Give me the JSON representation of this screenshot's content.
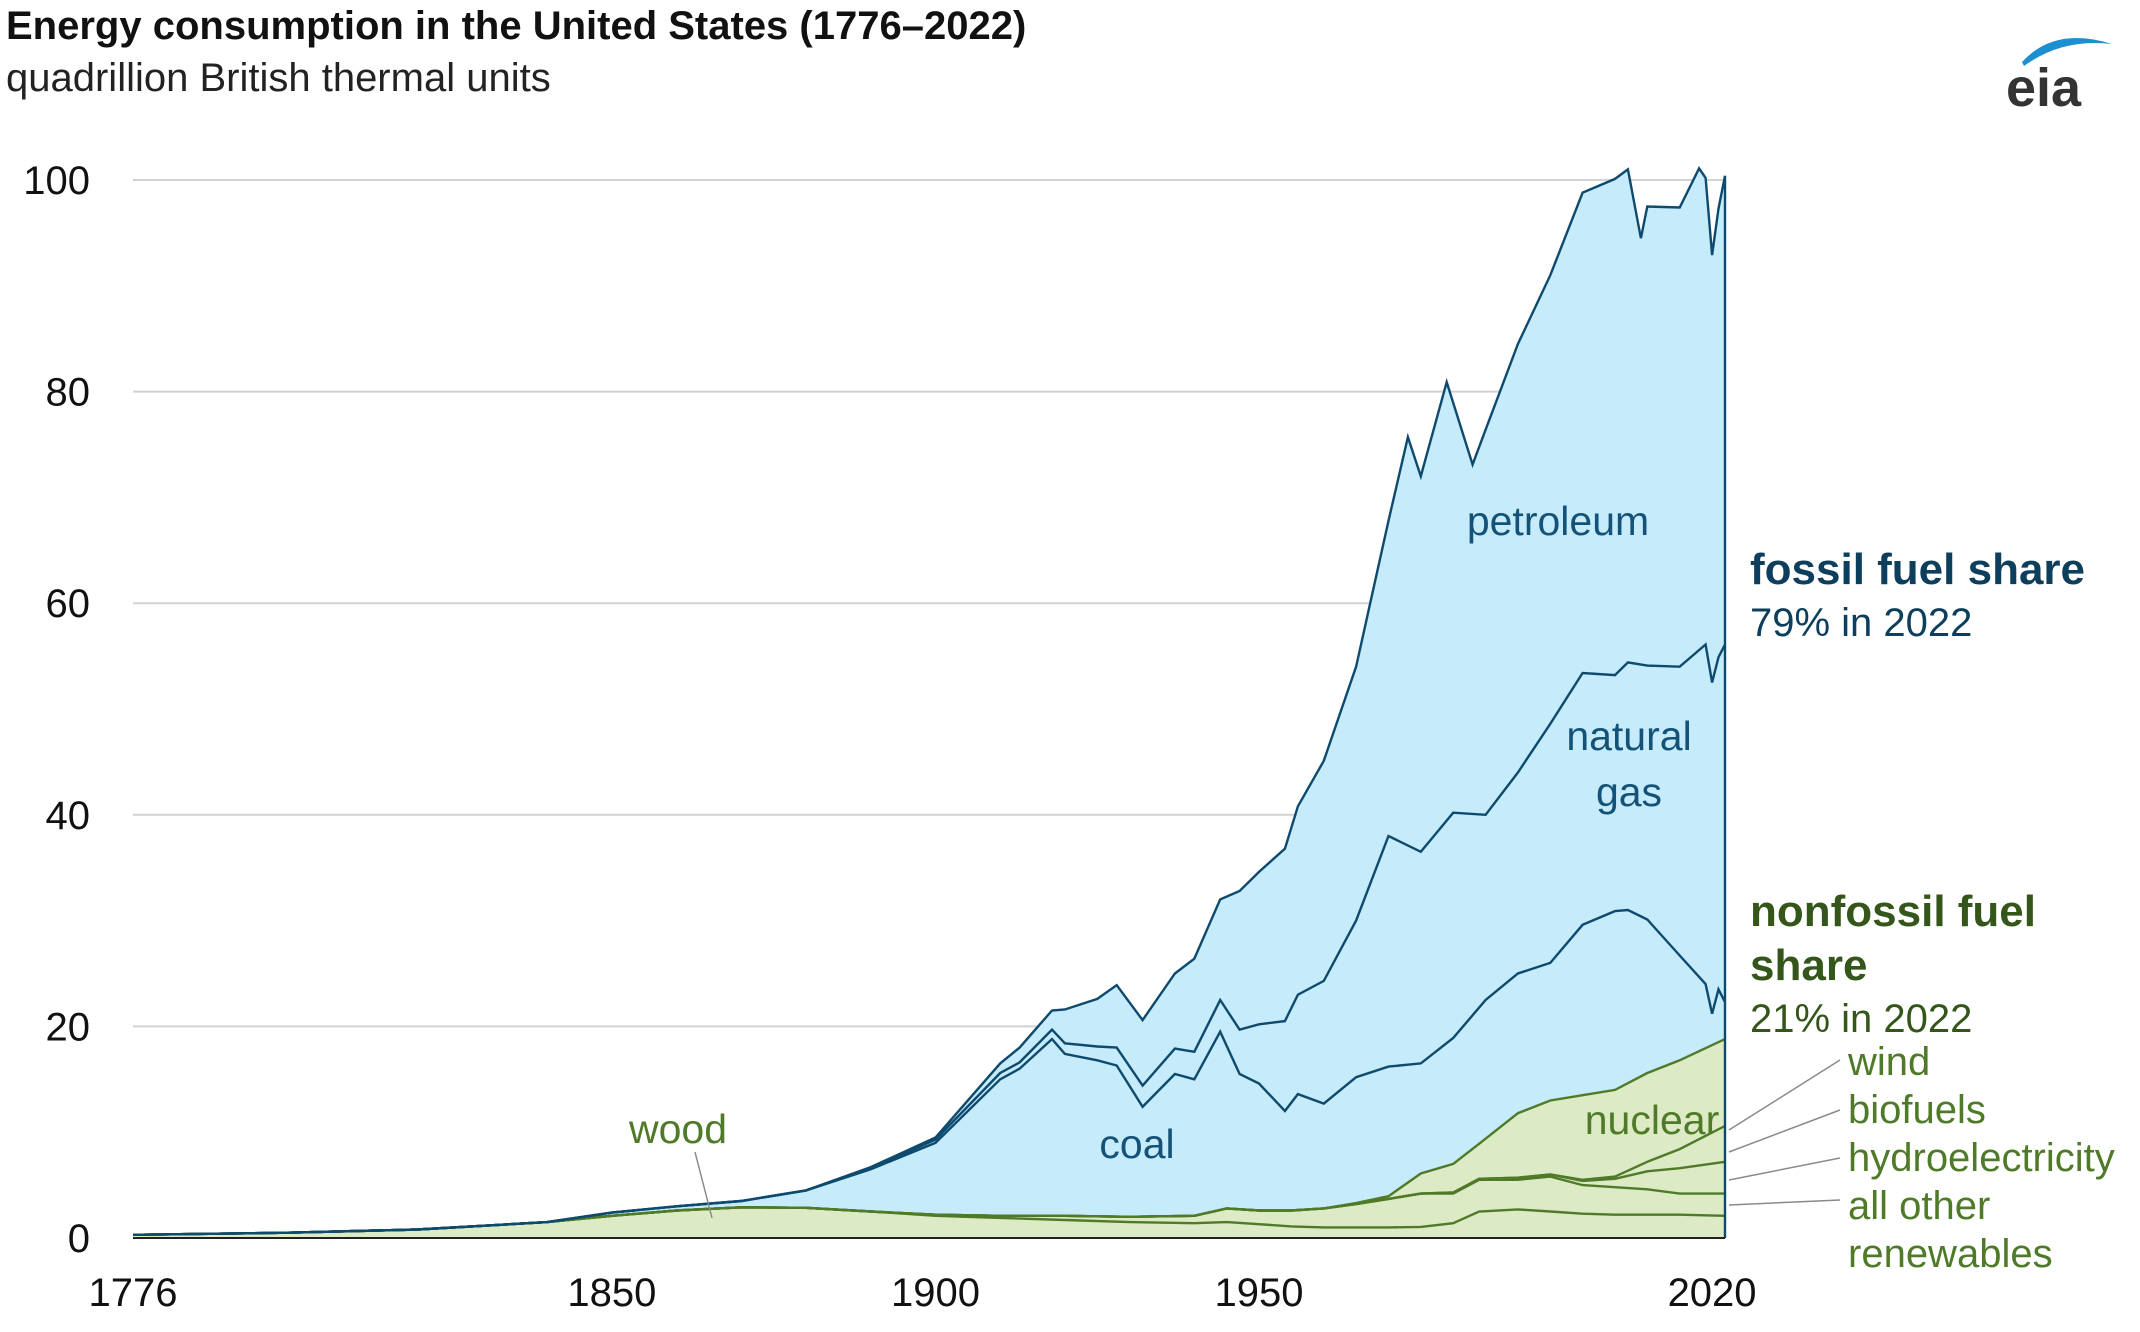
{
  "header": {
    "title": "Energy consumption in the United States (1776–2022)",
    "subtitle": "quadrillion British thermal units",
    "logo_text": "eia"
  },
  "colors": {
    "fossil_fill": "#c6ebfa",
    "fossil_line": "#0e4a6e",
    "nonfossil_fill": "#dcebc6",
    "nonfossil_line": "#4f7a28",
    "fossil_text": "#0d3e5c",
    "fossil_label": "#145277",
    "nonfossil_text": "#34561a",
    "nonfossil_label": "#4f7a28",
    "grid": "#d2d2d2",
    "logo_arc": "#1c8fd1"
  },
  "chart_data": {
    "type": "area",
    "stacked": true,
    "title": "Energy consumption in the United States (1776–2022)",
    "subtitle": "quadrillion British thermal units",
    "xlabel": "",
    "ylabel": "",
    "xlim": [
      1776,
      2022
    ],
    "ylim": [
      0,
      100
    ],
    "x_ticks": [
      1776,
      1850,
      1900,
      1950,
      2020
    ],
    "y_ticks": [
      0,
      20,
      40,
      60,
      80,
      100
    ],
    "grid": true,
    "series_order_bottom_to_top": [
      "all other renewables",
      "hydroelectricity",
      "biofuels",
      "wind",
      "nuclear",
      "coal",
      "natural gas",
      "petroleum"
    ],
    "cumulative_tops": {
      "all other renewables": [
        [
          1776,
          0.3
        ],
        [
          1800,
          0.5
        ],
        [
          1820,
          0.8
        ],
        [
          1840,
          1.5
        ],
        [
          1850,
          2.1
        ],
        [
          1860,
          2.6
        ],
        [
          1870,
          2.9
        ],
        [
          1880,
          2.85
        ],
        [
          1890,
          2.5
        ],
        [
          1900,
          2.1
        ],
        [
          1910,
          1.9
        ],
        [
          1920,
          1.7
        ],
        [
          1930,
          1.5
        ],
        [
          1940,
          1.4
        ],
        [
          1945,
          1.5
        ],
        [
          1950,
          1.3
        ],
        [
          1955,
          1.1
        ],
        [
          1960,
          1.0
        ],
        [
          1965,
          1.0
        ],
        [
          1970,
          1.0
        ],
        [
          1975,
          1.05
        ],
        [
          1980,
          1.4
        ],
        [
          1984,
          2.5
        ],
        [
          1990,
          2.7
        ],
        [
          1995,
          2.5
        ],
        [
          2000,
          2.3
        ],
        [
          2005,
          2.2
        ],
        [
          2010,
          2.2
        ],
        [
          2015,
          2.2
        ],
        [
          2022,
          2.1
        ]
      ],
      "hydroelectricity": [
        [
          1776,
          0.3
        ],
        [
          1800,
          0.5
        ],
        [
          1820,
          0.8
        ],
        [
          1840,
          1.5
        ],
        [
          1850,
          2.1
        ],
        [
          1860,
          2.6
        ],
        [
          1870,
          2.9
        ],
        [
          1880,
          2.85
        ],
        [
          1890,
          2.5
        ],
        [
          1900,
          2.2
        ],
        [
          1910,
          2.1
        ],
        [
          1920,
          2.1
        ],
        [
          1930,
          2.0
        ],
        [
          1940,
          2.1
        ],
        [
          1945,
          2.8
        ],
        [
          1950,
          2.6
        ],
        [
          1955,
          2.6
        ],
        [
          1960,
          2.8
        ],
        [
          1965,
          3.2
        ],
        [
          1970,
          3.7
        ],
        [
          1975,
          4.2
        ],
        [
          1980,
          4.2
        ],
        [
          1984,
          5.5
        ],
        [
          1990,
          5.5
        ],
        [
          1995,
          5.8
        ],
        [
          2000,
          5.0
        ],
        [
          2005,
          4.8
        ],
        [
          2010,
          4.6
        ],
        [
          2015,
          4.2
        ],
        [
          2022,
          4.2
        ]
      ],
      "biofuels": [
        [
          1776,
          0.3
        ],
        [
          1800,
          0.5
        ],
        [
          1820,
          0.8
        ],
        [
          1840,
          1.5
        ],
        [
          1850,
          2.1
        ],
        [
          1860,
          2.6
        ],
        [
          1870,
          2.9
        ],
        [
          1880,
          2.85
        ],
        [
          1890,
          2.5
        ],
        [
          1900,
          2.2
        ],
        [
          1910,
          2.1
        ],
        [
          1920,
          2.1
        ],
        [
          1930,
          2.0
        ],
        [
          1940,
          2.1
        ],
        [
          1945,
          2.8
        ],
        [
          1950,
          2.6
        ],
        [
          1955,
          2.6
        ],
        [
          1960,
          2.8
        ],
        [
          1965,
          3.2
        ],
        [
          1970,
          3.7
        ],
        [
          1975,
          4.2
        ],
        [
          1980,
          4.3
        ],
        [
          1984,
          5.6
        ],
        [
          1990,
          5.7
        ],
        [
          1995,
          6.0
        ],
        [
          2000,
          5.4
        ],
        [
          2005,
          5.6
        ],
        [
          2010,
          6.3
        ],
        [
          2015,
          6.6
        ],
        [
          2022,
          7.2
        ]
      ],
      "wind": [
        [
          1776,
          0.3
        ],
        [
          1800,
          0.5
        ],
        [
          1820,
          0.8
        ],
        [
          1840,
          1.5
        ],
        [
          1850,
          2.1
        ],
        [
          1860,
          2.6
        ],
        [
          1870,
          2.9
        ],
        [
          1880,
          2.85
        ],
        [
          1890,
          2.5
        ],
        [
          1900,
          2.2
        ],
        [
          1910,
          2.1
        ],
        [
          1920,
          2.1
        ],
        [
          1930,
          2.0
        ],
        [
          1940,
          2.1
        ],
        [
          1945,
          2.8
        ],
        [
          1950,
          2.6
        ],
        [
          1955,
          2.6
        ],
        [
          1960,
          2.8
        ],
        [
          1965,
          3.2
        ],
        [
          1970,
          3.7
        ],
        [
          1975,
          4.2
        ],
        [
          1980,
          4.3
        ],
        [
          1984,
          5.6
        ],
        [
          1990,
          5.7
        ],
        [
          1995,
          6.0
        ],
        [
          2000,
          5.5
        ],
        [
          2005,
          5.8
        ],
        [
          2010,
          7.2
        ],
        [
          2015,
          8.4
        ],
        [
          2022,
          10.6
        ]
      ],
      "nuclear": [
        [
          1776,
          0.3
        ],
        [
          1800,
          0.5
        ],
        [
          1820,
          0.8
        ],
        [
          1840,
          1.5
        ],
        [
          1850,
          2.1
        ],
        [
          1860,
          2.6
        ],
        [
          1870,
          2.9
        ],
        [
          1880,
          2.85
        ],
        [
          1890,
          2.5
        ],
        [
          1900,
          2.2
        ],
        [
          1910,
          2.1
        ],
        [
          1920,
          2.1
        ],
        [
          1930,
          2.0
        ],
        [
          1940,
          2.1
        ],
        [
          1945,
          2.8
        ],
        [
          1950,
          2.6
        ],
        [
          1955,
          2.6
        ],
        [
          1960,
          2.8
        ],
        [
          1965,
          3.3
        ],
        [
          1970,
          3.95
        ],
        [
          1975,
          6.1
        ],
        [
          1980,
          7.0
        ],
        [
          1984,
          8.9
        ],
        [
          1990,
          11.8
        ],
        [
          1995,
          13.0
        ],
        [
          2000,
          13.5
        ],
        [
          2005,
          14.0
        ],
        [
          2010,
          15.6
        ],
        [
          2015,
          16.8
        ],
        [
          2022,
          18.8
        ]
      ],
      "coal": [
        [
          1776,
          0.3
        ],
        [
          1800,
          0.5
        ],
        [
          1820,
          0.8
        ],
        [
          1840,
          1.5
        ],
        [
          1850,
          2.4
        ],
        [
          1860,
          3.0
        ],
        [
          1870,
          3.5
        ],
        [
          1880,
          4.5
        ],
        [
          1890,
          6.5
        ],
        [
          1900,
          9.0
        ],
        [
          1910,
          15.0
        ],
        [
          1913,
          16.0
        ],
        [
          1918,
          18.8
        ],
        [
          1920,
          17.4
        ],
        [
          1925,
          16.8
        ],
        [
          1928,
          16.3
        ],
        [
          1932,
          12.4
        ],
        [
          1937,
          15.5
        ],
        [
          1940,
          15.0
        ],
        [
          1944,
          19.5
        ],
        [
          1947,
          15.5
        ],
        [
          1950,
          14.6
        ],
        [
          1954,
          12.0
        ],
        [
          1956,
          13.6
        ],
        [
          1960,
          12.7
        ],
        [
          1965,
          15.2
        ],
        [
          1970,
          16.2
        ],
        [
          1975,
          16.5
        ],
        [
          1980,
          18.9
        ],
        [
          1985,
          22.5
        ],
        [
          1990,
          25.0
        ],
        [
          1995,
          26.0
        ],
        [
          2000,
          29.6
        ],
        [
          2005,
          30.9
        ],
        [
          2007,
          31.0
        ],
        [
          2010,
          30.1
        ],
        [
          2015,
          26.7
        ],
        [
          2019,
          24.0
        ],
        [
          2020,
          21.2
        ],
        [
          2021,
          23.5
        ],
        [
          2022,
          22.3
        ]
      ],
      "natural gas": [
        [
          1776,
          0.3
        ],
        [
          1800,
          0.5
        ],
        [
          1820,
          0.8
        ],
        [
          1840,
          1.5
        ],
        [
          1850,
          2.4
        ],
        [
          1860,
          3.0
        ],
        [
          1870,
          3.5
        ],
        [
          1880,
          4.5
        ],
        [
          1890,
          6.6
        ],
        [
          1900,
          9.3
        ],
        [
          1910,
          15.6
        ],
        [
          1913,
          16.6
        ],
        [
          1918,
          19.7
        ],
        [
          1920,
          18.4
        ],
        [
          1925,
          18.1
        ],
        [
          1928,
          18.0
        ],
        [
          1932,
          14.4
        ],
        [
          1937,
          17.9
        ],
        [
          1940,
          17.6
        ],
        [
          1944,
          22.5
        ],
        [
          1947,
          19.7
        ],
        [
          1950,
          20.2
        ],
        [
          1954,
          20.5
        ],
        [
          1956,
          23.0
        ],
        [
          1960,
          24.3
        ],
        [
          1965,
          30.0
        ],
        [
          1970,
          38.0
        ],
        [
          1975,
          36.5
        ],
        [
          1980,
          40.2
        ],
        [
          1985,
          40.0
        ],
        [
          1990,
          44.0
        ],
        [
          1995,
          48.6
        ],
        [
          2000,
          53.4
        ],
        [
          2005,
          53.2
        ],
        [
          2007,
          54.4
        ],
        [
          2010,
          54.1
        ],
        [
          2015,
          54.0
        ],
        [
          2019,
          56.1
        ],
        [
          2020,
          52.5
        ],
        [
          2021,
          54.9
        ],
        [
          2022,
          56.1
        ]
      ],
      "petroleum": [
        [
          1776,
          0.3
        ],
        [
          1800,
          0.5
        ],
        [
          1820,
          0.8
        ],
        [
          1840,
          1.5
        ],
        [
          1850,
          2.4
        ],
        [
          1860,
          3.0
        ],
        [
          1870,
          3.5
        ],
        [
          1880,
          4.5
        ],
        [
          1890,
          6.7
        ],
        [
          1900,
          9.5
        ],
        [
          1910,
          16.5
        ],
        [
          1913,
          18.0
        ],
        [
          1918,
          21.5
        ],
        [
          1920,
          21.6
        ],
        [
          1925,
          22.6
        ],
        [
          1928,
          23.9
        ],
        [
          1932,
          20.6
        ],
        [
          1937,
          25.0
        ],
        [
          1940,
          26.4
        ],
        [
          1944,
          32.0
        ],
        [
          1947,
          32.8
        ],
        [
          1950,
          34.6
        ],
        [
          1954,
          36.8
        ],
        [
          1956,
          40.8
        ],
        [
          1960,
          45.1
        ],
        [
          1965,
          54.0
        ],
        [
          1970,
          67.8
        ],
        [
          1973,
          75.7
        ],
        [
          1975,
          72.0
        ],
        [
          1979,
          80.9
        ],
        [
          1983,
          73.1
        ],
        [
          1985,
          76.4
        ],
        [
          1990,
          84.5
        ],
        [
          1995,
          91.0
        ],
        [
          2000,
          98.8
        ],
        [
          2005,
          100.1
        ],
        [
          2007,
          101.0
        ],
        [
          2009,
          94.5
        ],
        [
          2010,
          97.5
        ],
        [
          2015,
          97.4
        ],
        [
          2018,
          101.1
        ],
        [
          2019,
          100.2
        ],
        [
          2020,
          92.9
        ],
        [
          2021,
          97.3
        ],
        [
          2022,
          100.4
        ]
      ]
    },
    "series_labels": [
      "petroleum",
      "natural gas",
      "coal",
      "wood",
      "nuclear"
    ],
    "legend_entries": [
      "wind",
      "biofuels",
      "hydroelectricity",
      "all other renewables"
    ],
    "annotations": {
      "fossil_title": "fossil fuel share",
      "fossil_value": "79% in 2022",
      "nonfossil_title": "nonfossil fuel share",
      "nonfossil_value": "21% in 2022"
    }
  }
}
